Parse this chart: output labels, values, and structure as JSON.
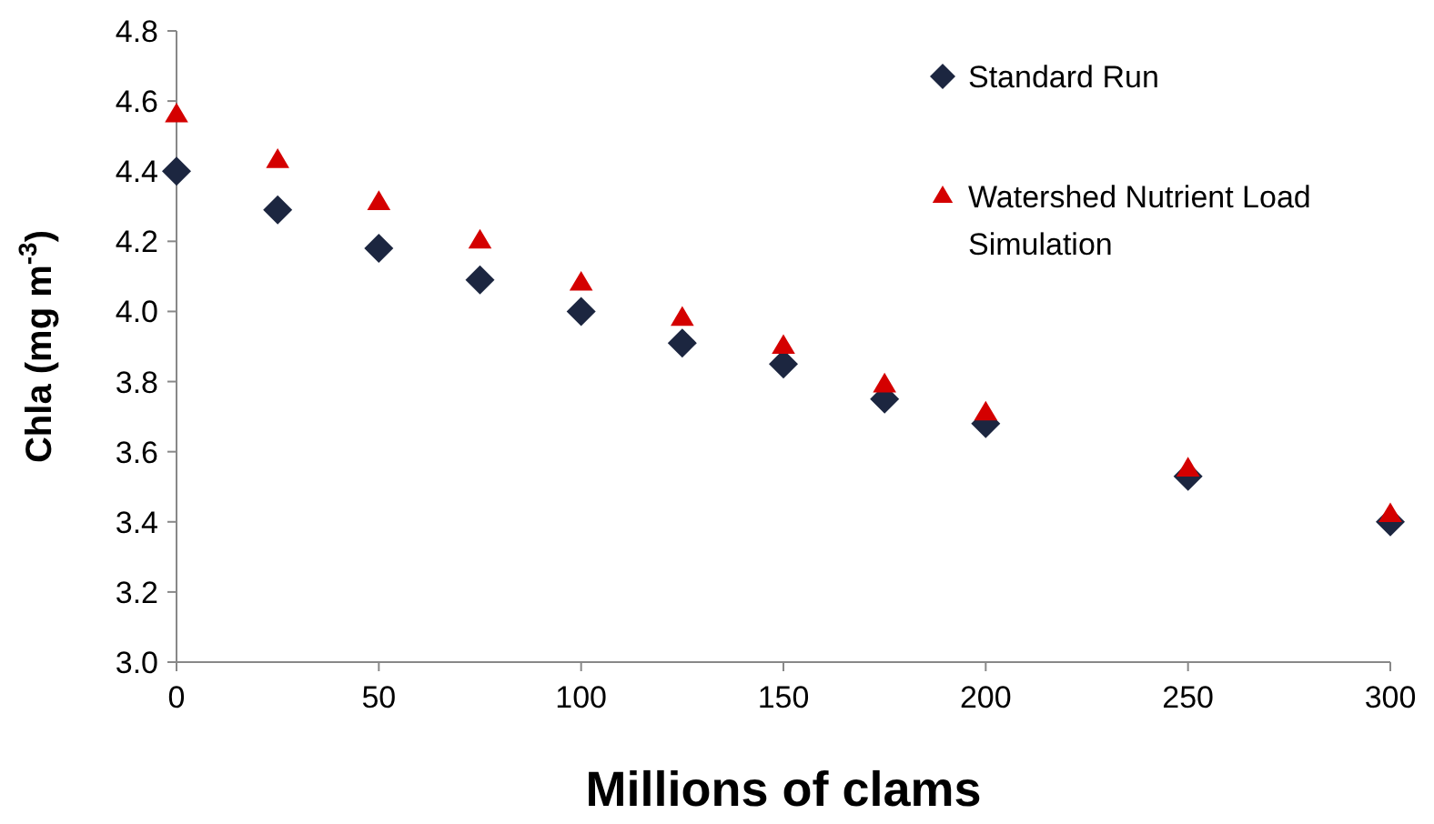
{
  "chart_data": {
    "type": "scatter",
    "xlabel": "Millions of clams",
    "ylabel": "Chla (mg m$^{-3}$)",
    "x": [
      0,
      25,
      50,
      75,
      100,
      125,
      150,
      175,
      200,
      250,
      300
    ],
    "series": [
      {
        "name": "Standard Run",
        "color": "#1c2640",
        "marker": "diamond",
        "values": [
          4.4,
          4.29,
          4.18,
          4.09,
          4.0,
          3.91,
          3.85,
          3.75,
          3.68,
          3.53,
          3.4
        ]
      },
      {
        "name": "Watershed Nutrient Load Simulation",
        "color": "#d40000",
        "marker": "triangle",
        "values": [
          4.56,
          4.43,
          4.31,
          4.2,
          4.08,
          3.98,
          3.9,
          3.79,
          3.71,
          3.55,
          3.42
        ]
      }
    ],
    "xlim": [
      0,
      300
    ],
    "xticks": [
      0,
      50,
      100,
      150,
      200,
      250,
      300
    ],
    "ylim": [
      3.0,
      4.8
    ],
    "yticks": [
      {
        "value": 3.0,
        "label": "3.0"
      },
      {
        "value": 3.2,
        "label": "3.2"
      },
      {
        "value": 3.4,
        "label": "3.4"
      },
      {
        "value": 3.6,
        "label": "3.6"
      },
      {
        "value": 3.8,
        "label": "3.8"
      },
      {
        "value": 4.0,
        "label": "4.0"
      },
      {
        "value": 4.2,
        "label": "4.2"
      },
      {
        "value": 4.4,
        "label": "4.4"
      },
      {
        "value": 4.6,
        "label": "4.6"
      },
      {
        "value": 4.8,
        "label": "4.8"
      }
    ],
    "grid": false,
    "legend": "top right"
  }
}
